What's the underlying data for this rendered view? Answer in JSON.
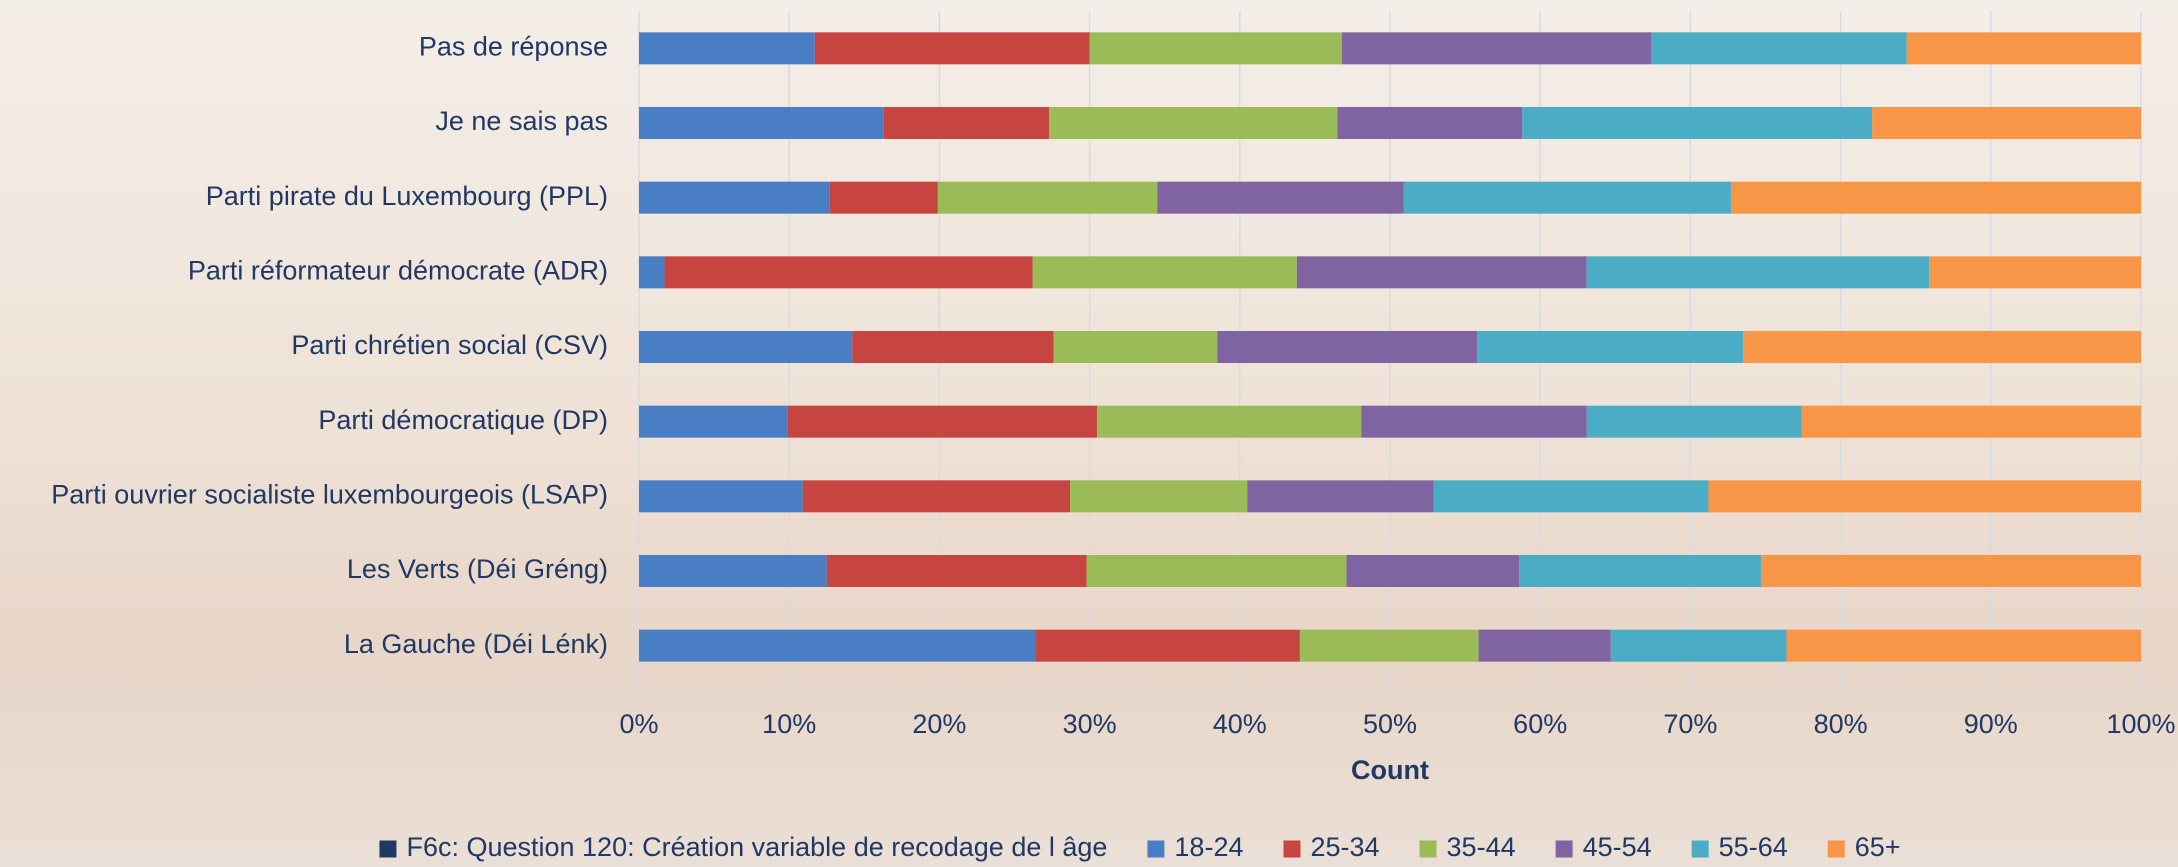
{
  "chart_data": {
    "type": "stacked-bar-horizontal",
    "x_label": "Count",
    "categories": [
      "Pas de réponse",
      "Je ne sais pas",
      "Parti pirate du Luxembourg (PPL)",
      "Parti réformateur démocrate (ADR)",
      "Parti chrétien social (CSV)",
      "Parti démocratique (DP)",
      "Parti ouvrier socialiste luxembourgeois (LSAP)",
      "Les Verts (Déi Gréng)",
      "La Gauche (Déi Lénk)"
    ],
    "series": [
      {
        "name": "18-24",
        "color": "#4a7ec4",
        "values": [
          11.7,
          16.3,
          12.7,
          1.7,
          14.2,
          9.9,
          10.9,
          12.5,
          26.4
        ]
      },
      {
        "name": "25-34",
        "color": "#c64541",
        "values": [
          18.3,
          11.0,
          7.2,
          24.5,
          13.4,
          20.6,
          17.8,
          17.3,
          17.6
        ]
      },
      {
        "name": "35-44",
        "color": "#9bbb59",
        "values": [
          16.8,
          19.2,
          14.6,
          17.6,
          10.9,
          17.6,
          11.8,
          17.3,
          11.9
        ]
      },
      {
        "name": "45-54",
        "color": "#8064a2",
        "values": [
          20.6,
          12.3,
          16.4,
          19.3,
          17.3,
          15.0,
          12.4,
          11.5,
          8.8
        ]
      },
      {
        "name": "55-64",
        "color": "#4bacc6",
        "values": [
          17.0,
          23.3,
          21.8,
          22.8,
          17.7,
          14.3,
          18.3,
          16.1,
          11.7
        ]
      },
      {
        "name": "65+",
        "color": "#f79646",
        "values": [
          15.6,
          17.9,
          27.3,
          14.1,
          26.5,
          22.6,
          28.8,
          25.3,
          23.6
        ]
      }
    ],
    "legend_title": {
      "text": "F6c: Question 120: Création variable de recodage de l âge",
      "color": "#1f3864"
    },
    "xlim": [
      0,
      100
    ],
    "xticks": [
      {
        "value": 0,
        "label": "0%"
      },
      {
        "value": 10,
        "label": "10%"
      },
      {
        "value": 20,
        "label": "20%"
      },
      {
        "value": 30,
        "label": "30%"
      },
      {
        "value": 40,
        "label": "40%"
      },
      {
        "value": 50,
        "label": "50%"
      },
      {
        "value": 60,
        "label": "60%"
      },
      {
        "value": 70,
        "label": "70%"
      },
      {
        "value": 80,
        "label": "80%"
      },
      {
        "value": 90,
        "label": "90%"
      },
      {
        "value": 100,
        "label": "100%"
      }
    ],
    "grid": true,
    "legend": "bottom"
  }
}
